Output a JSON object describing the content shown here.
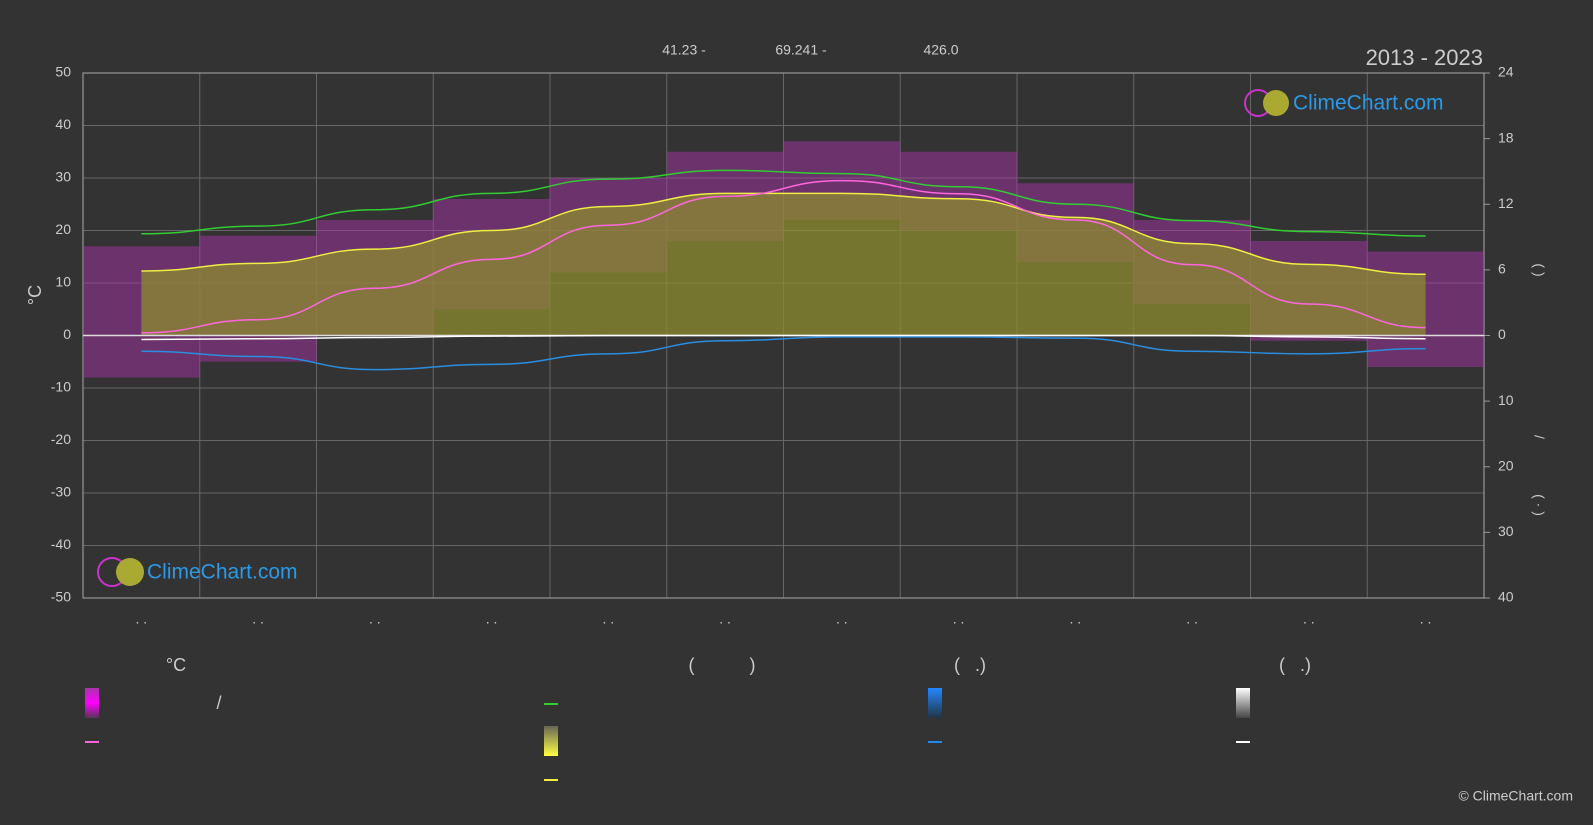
{
  "chart_data": {
    "type": "climate",
    "period": "2013 - 2023",
    "top_labels": [
      "41.23 -",
      "69.241 -",
      "426.0"
    ],
    "brand": "ClimeChart.com",
    "copyright": "© ClimeChart.com",
    "y_label": "°C",
    "y2_label_parts": [
      "(   )",
      "/",
      "( · )"
    ],
    "categories": [
      ". .",
      ". .",
      ". .",
      ". .",
      ". .",
      ". .",
      ". .",
      ". .",
      ". .",
      ". .",
      ". .",
      ". ."
    ],
    "ylim": [
      -50,
      50
    ],
    "yticks": [
      -50,
      -40,
      -30,
      -20,
      -10,
      0,
      10,
      20,
      30,
      40,
      50
    ],
    "sunshine_axis": {
      "lim": [
        0,
        24
      ],
      "ticks": [
        0,
        6,
        12,
        18,
        24
      ]
    },
    "precip_axis": {
      "lim": [
        0,
        40
      ],
      "ticks": [
        10,
        20,
        30,
        40
      ]
    },
    "grid": true,
    "temp_band": {
      "color": "#b030b0",
      "upper": [
        17,
        19,
        22,
        26,
        30,
        35,
        37,
        35,
        29,
        22,
        18,
        16
      ],
      "lower": [
        -8,
        -5,
        0,
        5,
        12,
        18,
        22,
        20,
        14,
        6,
        -1,
        -6
      ]
    },
    "series": [
      {
        "color": "#33cc33",
        "axis": "sunshine",
        "values": [
          9.3,
          10,
          11.5,
          13,
          14.3,
          15.1,
          14.8,
          13.6,
          12,
          10.5,
          9.5,
          9.1
        ]
      },
      {
        "color": "#eeee44",
        "axis": "sunshine",
        "fill": "#8c8c30",
        "values": [
          5.9,
          6.6,
          7.9,
          9.6,
          11.8,
          13,
          13,
          12.5,
          10.8,
          8.4,
          6.5,
          5.6
        ]
      },
      {
        "color": "#ff66dd",
        "axis": "y",
        "values": [
          0.5,
          3,
          9,
          14.5,
          21,
          26.5,
          29.5,
          27,
          22,
          13.5,
          6,
          1.5
        ]
      },
      {
        "color": "#2a8ee0",
        "axis": "precip",
        "values": [
          2.4,
          3.2,
          5.2,
          4.4,
          2.8,
          0.8,
          0.2,
          0.2,
          0.4,
          2.4,
          2.8,
          2
        ]
      },
      {
        "color": "#ffffff",
        "axis": "precip",
        "values": [
          0.6,
          0.5,
          0.3,
          0.1,
          0,
          0,
          0,
          0,
          0,
          0,
          0.2,
          0.5
        ]
      }
    ],
    "legend": {
      "headers": [
        "°C",
        "(           )",
        "(   .)",
        "(   .)"
      ],
      "slash": "/"
    }
  }
}
